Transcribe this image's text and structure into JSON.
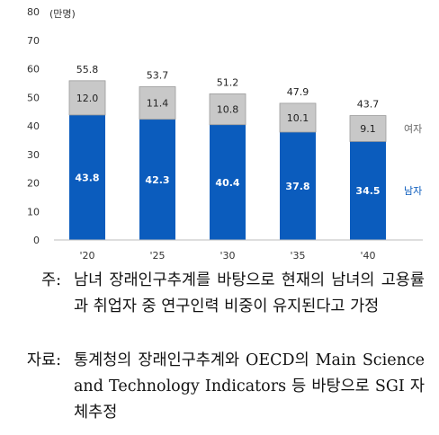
{
  "chart_data": {
    "type": "bar",
    "stacked": true,
    "unit_label": "(만명)",
    "categories": [
      "'20",
      "'25",
      "'30",
      "'35",
      "'40"
    ],
    "series": [
      {
        "name": "남자",
        "values": [
          43.8,
          42.3,
          40.4,
          37.8,
          34.5
        ],
        "color": "#0b5cbd"
      },
      {
        "name": "여자",
        "values": [
          12.0,
          11.4,
          10.8,
          10.1,
          9.1
        ],
        "color": "#c8c8c8"
      }
    ],
    "totals": [
      55.8,
      53.7,
      51.2,
      47.9,
      43.7
    ],
    "ylim": [
      0,
      80
    ],
    "yticks": [
      0,
      10,
      20,
      30,
      40,
      50,
      60,
      70,
      80
    ],
    "grid": false,
    "legend": "inline-right"
  },
  "notes": {
    "note": {
      "label": "주:",
      "text": "남녀 장래인구추계를 바탕으로 현재의 남녀의 고용률과 취업자 중 연구인력 비중이 유지된다고 가정"
    },
    "source": {
      "label": "자료:",
      "text": "통계청의 장래인구추계와 OECD의 Main Science and Technology Indicators 등 바탕으로 SGI 자체추정"
    }
  }
}
